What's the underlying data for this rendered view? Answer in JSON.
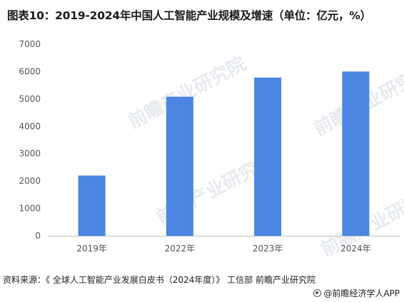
{
  "title": "图表10：2019-2024年中国人工智能产业规模及增速（单位：亿元，%）",
  "source": "资料来源：《 全球人工智能产业发展白皮书（2024年度）》 工信部 前瞻产业研究院",
  "brand": "@前瞻经济学人APP",
  "watermark": "前瞻产业研究院",
  "colors": {
    "bar": "#4a86e2",
    "axis": "#bfbfbf"
  },
  "chart_data": {
    "type": "bar",
    "categories": [
      "2019年",
      "2022年",
      "2023年",
      "2024年"
    ],
    "values": [
      2200,
      5080,
      5780,
      6000
    ],
    "ylim": [
      0,
      7000
    ],
    "yticks": [
      0,
      1000,
      2000,
      3000,
      4000,
      5000,
      6000,
      7000
    ],
    "grid": false,
    "legend": "none"
  }
}
